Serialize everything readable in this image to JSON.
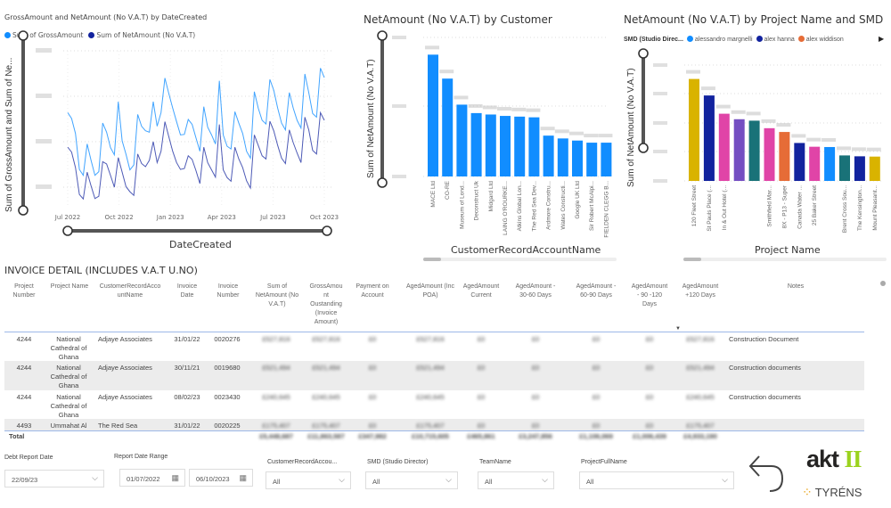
{
  "line_chart_title": "GrossAmount and NetAmount (No V.A.T) by DateCreated",
  "customer_chart_title": "NetAmount (No V.A.T) by Customer",
  "project_chart_title": "NetAmount (No V.A.T) by Project Name and SMD",
  "chart_data": [
    {
      "type": "line",
      "title": "GrossAmount and NetAmount (No V.A.T) by DateCreated",
      "xlabel": "DateCreated",
      "ylabel": "Sum of GrossAmount and Sum of Ne...",
      "x_tick_labels": [
        "Jul 2022",
        "Oct 2022",
        "Jan 2023",
        "Apr 2023",
        "Jul 2023",
        "Oct 2023"
      ],
      "legend_placement": "top-left",
      "grid": true,
      "ylim": [
        1,
        4
      ],
      "x": [
        "2022-07-01",
        "2022-07-08",
        "2022-07-15",
        "2022-07-22",
        "2022-07-29",
        "2022-08-05",
        "2022-08-12",
        "2022-08-19",
        "2022-08-26",
        "2022-09-02",
        "2022-09-09",
        "2022-09-16",
        "2022-09-23",
        "2022-09-30",
        "2022-10-07",
        "2022-10-14",
        "2022-10-21",
        "2022-10-28",
        "2022-11-04",
        "2022-11-11",
        "2022-11-18",
        "2022-11-25",
        "2022-12-02",
        "2022-12-09",
        "2022-12-16",
        "2022-12-23",
        "2022-12-30",
        "2023-01-06",
        "2023-01-13",
        "2023-01-20",
        "2023-01-27",
        "2023-02-03",
        "2023-02-10",
        "2023-02-17",
        "2023-02-24",
        "2023-03-03",
        "2023-03-10",
        "2023-03-17",
        "2023-03-24",
        "2023-03-31",
        "2023-04-07",
        "2023-04-14",
        "2023-04-21",
        "2023-04-28",
        "2023-05-05",
        "2023-05-12",
        "2023-05-19",
        "2023-05-26",
        "2023-06-02",
        "2023-06-09",
        "2023-06-16",
        "2023-06-23",
        "2023-06-30",
        "2023-07-07",
        "2023-07-14",
        "2023-07-21",
        "2023-07-28",
        "2023-08-04",
        "2023-08-11",
        "2023-08-18",
        "2023-08-25",
        "2023-09-01",
        "2023-09-08",
        "2023-09-15",
        "2023-09-22",
        "2023-09-29",
        "2023-10-06"
      ],
      "series": [
        {
          "name": "Sum of GrossAmount",
          "color": "#118DFF",
          "values": [
            2.64,
            2.51,
            2.18,
            1.39,
            1.26,
            1.95,
            1.59,
            1.26,
            1.34,
            2.41,
            2.21,
            1.87,
            1.71,
            2.88,
            2.02,
            1.72,
            1.38,
            1.49,
            2.6,
            2.34,
            2.24,
            2.21,
            2.88,
            2.34,
            2.64,
            3.4,
            3.06,
            2.74,
            2.44,
            2.15,
            2.16,
            2.49,
            2.38,
            2.08,
            1.79,
            2.77,
            2.32,
            2.15,
            1.95,
            3.34,
            2.15,
            1.9,
            1.84,
            2.66,
            2.41,
            2.18,
            1.79,
            1.64,
            3.1,
            2.74,
            2.47,
            2.39,
            3.37,
            3.13,
            2.74,
            2.41,
            2.26,
            3.08,
            2.74,
            2.47,
            2.3,
            3.49,
            3.08,
            2.62,
            2.54,
            3.62,
            3.41
          ]
        },
        {
          "name": "Sum of NetAmount (No V.A.T)",
          "color": "#12239E",
          "values": [
            1.88,
            1.77,
            1.43,
            0.84,
            0.74,
            1.33,
            1.03,
            0.75,
            0.8,
            1.56,
            1.51,
            1.26,
            1.0,
            1.65,
            1.33,
            1.01,
            0.9,
            0.82,
            1.73,
            1.52,
            1.45,
            1.59,
            2.0,
            1.54,
            1.79,
            2.44,
            2.11,
            1.79,
            1.54,
            1.39,
            1.41,
            1.69,
            1.61,
            1.36,
            1.08,
            1.88,
            1.54,
            1.38,
            1.22,
            2.38,
            1.38,
            1.21,
            1.13,
            1.88,
            1.62,
            1.43,
            1.14,
            0.98,
            2.15,
            1.92,
            1.69,
            1.62,
            2.45,
            2.24,
            1.92,
            1.64,
            1.52,
            2.26,
            1.98,
            1.75,
            1.54,
            2.54,
            2.26,
            1.81,
            1.73,
            2.64,
            2.47
          ]
        }
      ]
    },
    {
      "type": "bar",
      "title": "NetAmount (No V.A.T) by Customer",
      "xlabel": "CustomerRecordAccountName",
      "ylabel": "Sum of NetAmount (No V.A.T)",
      "ylim": [
        0,
        2
      ],
      "grid": true,
      "color": "#118DFF",
      "categories": [
        "MACE Ltd",
        "CO-RE",
        "Museum of Lond...",
        "Deconstruct Uk",
        "Midgard Ltd",
        "LAING O'ROURKE...",
        "Atkins Global Lon...",
        "The Red Sea Dev...",
        "Ardmore Constru...",
        "Wates Constructi...",
        "Google UK Ltd",
        "Sir Robert McAlpi...",
        "FIELDEN CLEGG B..."
      ],
      "values": [
        1.73,
        1.39,
        1.02,
        0.9,
        0.88,
        0.86,
        0.85,
        0.84,
        0.58,
        0.54,
        0.51,
        0.48,
        0.48
      ]
    },
    {
      "type": "bar",
      "title": "NetAmount (No V.A.T) by Project Name and SMD",
      "xlabel": "Project Name",
      "ylabel": "Sum of NetAmount (No V.A.T)",
      "ylim": [
        0,
        4
      ],
      "grid": true,
      "legend_title": "SMD (Studio Direc...",
      "legend": [
        {
          "name": "alessandro margnelli",
          "color": "#118DFF"
        },
        {
          "name": "alex hanna",
          "color": "#12239E"
        },
        {
          "name": "alex widdison",
          "color": "#E66C37"
        }
      ],
      "categories": [
        "120 Fleet Street",
        "St Pauls Place (...",
        "In & Out Hotel (...",
        "",
        "",
        "Smithfield Mar...",
        "8X - P13 - Super",
        "Canada Water ...",
        "25 Baker Street",
        "",
        "Brent Cross Sou...",
        "The Kensington...",
        "Mount Pleasant..."
      ],
      "values": [
        3.52,
        2.95,
        2.32,
        2.13,
        2.08,
        1.82,
        1.69,
        1.31,
        1.18,
        1.17,
        0.88,
        0.85,
        0.84
      ],
      "colors": [
        "#D9B300",
        "#12239E",
        "#E044A7",
        "#744EC2",
        "#197278",
        "#E044A7",
        "#E66C37",
        "#12239E",
        "#E044A7",
        "#118DFF",
        "#197278",
        "#12239E",
        "#D9B300"
      ]
    }
  ],
  "table": {
    "title": "INVOICE DETAIL (INCLUDES V.A.T U.NO)",
    "headers": [
      "Project\nNumber",
      "Project Name",
      "CustomerRecordAcco\nuntName",
      "Invoice\nDate",
      "Invoice\nNumber",
      "Sum of\nNetAmount (No\nV.A.T)",
      "GrossAmou\nnt\nOustanding\n(Invoice\nAmount)",
      "Payment on\nAccount",
      "AgedAmount (Inc\nPOA)",
      "AgedAmount\nCurrent",
      "AgedAmount -\n30-60 Days",
      "AgedAmount -\n60-90 Days",
      "AgedAmount\n- 90 -120\nDays",
      "AgedAmount\n+120 Days",
      "Notes"
    ],
    "rows": [
      [
        "4244",
        "National\nCathedral of\nGhana",
        "Adjaye Associates",
        "31/01/22",
        "0020276",
        "£527,816",
        "£527,816",
        "£0",
        "£527,816",
        "£0",
        "£0",
        "£0",
        "£0",
        "£527,816",
        "Construction Document"
      ],
      [
        "4244",
        "National\nCathedral of\nGhana",
        "Adjaye Associates",
        "30/11/21",
        "0019680",
        "£521,494",
        "£521,494",
        "£0",
        "£521,494",
        "£0",
        "£0",
        "£0",
        "£0",
        "£521,494",
        "Construction documents"
      ],
      [
        "4244",
        "National\nCathedral of\nGhana",
        "Adjaye Associates",
        "08/02/23",
        "0023430",
        "£240,645",
        "£240,645",
        "£0",
        "£240,645",
        "£0",
        "£0",
        "£0",
        "£0",
        "£240,645",
        "Construction documents"
      ],
      [
        "4493",
        "Ummahat Al",
        "The Red Sea",
        "31/01/22",
        "0020225",
        "£175,407",
        "£175,407",
        "£0",
        "£175,407",
        "£0",
        "£0",
        "£0",
        "£0",
        "£175,407",
        ""
      ]
    ],
    "total_label": "Total",
    "totals": [
      "£5,448,687",
      "£11,863,587",
      "£347,982",
      "£10,715,605",
      "£465,861",
      "£3,247,856",
      "£1,106,069",
      "£1,006,439",
      "£4,933,190"
    ]
  },
  "filters": {
    "debt_report_date": {
      "label": "Debt Report Date",
      "value": "22/09/23"
    },
    "report_date_range": {
      "label": "Report Date Range",
      "start": "01/07/2022",
      "end": "06/10/2023"
    },
    "customer": {
      "label": "CustomerRecordAccou...",
      "value": "All"
    },
    "smd": {
      "label": "SMD (Studio Director)",
      "value": "All"
    },
    "team": {
      "label": "TeamName",
      "value": "All"
    },
    "project": {
      "label": "ProjectFullName",
      "value": "All"
    }
  },
  "logos": {
    "akt": "akt II",
    "tyrens": "TYRÉNS"
  }
}
